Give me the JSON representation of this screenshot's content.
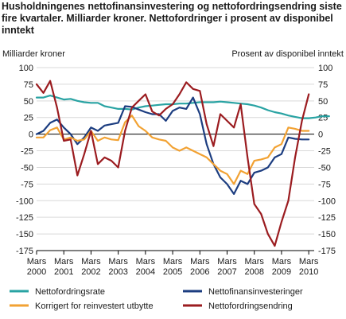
{
  "chart_data": {
    "type": "line",
    "title": "Husholdningenes nettofinansinvestering og nettofordringsendring siste fire kvartaler. Milliarder kroner. Nettofordringer i prosent av disponibel inntekt",
    "left_axis_label": "Milliarder kroner",
    "right_axis_label": "Prosent av disponibel inntekt",
    "y_ticks": [
      "100",
      "75",
      "50",
      "25",
      "0",
      "-25",
      "-50",
      "-75",
      "-100",
      "-125",
      "-150",
      "-175"
    ],
    "ylim": [
      -175,
      100
    ],
    "x_tick_labels": [
      {
        "month": "Mars",
        "year": "2000"
      },
      {
        "month": "Mars",
        "year": "2001"
      },
      {
        "month": "Mars",
        "year": "2002"
      },
      {
        "month": "Mars",
        "year": "2003"
      },
      {
        "month": "Mars",
        "year": "2004"
      },
      {
        "month": "Mars",
        "year": "2005"
      },
      {
        "month": "Mars",
        "year": "2006"
      },
      {
        "month": "Mars",
        "year": "2007"
      },
      {
        "month": "Mars",
        "year": "2008"
      },
      {
        "month": "Mars",
        "year": "2009"
      },
      {
        "month": "Mars",
        "year": "2010"
      }
    ],
    "x_start": 2000.0,
    "x_step": 0.25,
    "grid": true,
    "legend_position": "bottom",
    "series": [
      {
        "name": "Nettofordringsrate",
        "color": "#29a3a3",
        "values": [
          55,
          55,
          58,
          55,
          52,
          53,
          50,
          48,
          47,
          47,
          42,
          40,
          38,
          38,
          37,
          40,
          42,
          43,
          44,
          45,
          45,
          46,
          46,
          47,
          48,
          48,
          48,
          49,
          48,
          47,
          46,
          45,
          43,
          40,
          36,
          33,
          31,
          28,
          26,
          24,
          24,
          25,
          27,
          27
        ]
      },
      {
        "name": "Nettofinansinvesteringer",
        "color": "#1c3d80",
        "values": [
          0,
          5,
          17,
          22,
          10,
          0,
          -15,
          -5,
          10,
          5,
          13,
          15,
          17,
          42,
          41,
          37,
          33,
          30,
          30,
          20,
          35,
          40,
          38,
          55,
          30,
          -15,
          -45,
          -65,
          -75,
          -90,
          -70,
          -75,
          -58,
          -55,
          -50,
          -35,
          -30,
          -5,
          -7,
          -8,
          -8
        ]
      },
      {
        "name": "Korrigert for reinvestert utbytte",
        "color": "#f2a233",
        "values": [
          -5,
          -5,
          6,
          10,
          -8,
          -5,
          -10,
          -8,
          5,
          -10,
          -5,
          -8,
          -9,
          18,
          28,
          12,
          5,
          -5,
          -8,
          -10,
          -20,
          -25,
          -20,
          -25,
          -30,
          -35,
          -45,
          -55,
          -60,
          -75,
          -55,
          -60,
          -40,
          -38,
          -35,
          -20,
          -15,
          10,
          8,
          5,
          5
        ]
      },
      {
        "name": "Nettofordringsendring",
        "color": "#9b1c20",
        "values": [
          75,
          62,
          80,
          40,
          -10,
          -8,
          -62,
          -30,
          5,
          -45,
          -35,
          -40,
          -50,
          5,
          40,
          50,
          60,
          34,
          28,
          38,
          45,
          60,
          78,
          68,
          65,
          15,
          -18,
          30,
          20,
          10,
          45,
          -35,
          -105,
          -120,
          -150,
          -168,
          -132,
          -100,
          -35,
          20,
          60
        ]
      }
    ]
  }
}
